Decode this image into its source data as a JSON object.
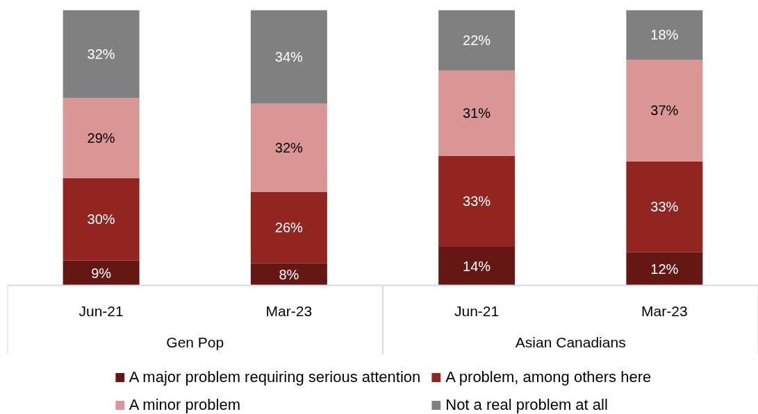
{
  "chart_data": {
    "type": "bar",
    "stacked": true,
    "categories": [
      "Jun-21",
      "Mar-23",
      "Jun-21",
      "Mar-23"
    ],
    "series": [
      {
        "name": "A major problem requiring serious attention",
        "color": "#651713",
        "values": [
          9,
          8,
          14,
          12
        ],
        "value_labels": [
          "9%",
          "8%",
          "14%",
          "12%"
        ]
      },
      {
        "name": "A problem, among others here",
        "color": "#922520",
        "values": [
          30,
          26,
          33,
          33
        ],
        "value_labels": [
          "30%",
          "26%",
          "33%",
          "33%"
        ]
      },
      {
        "name": "A minor problem",
        "color": "#da9694",
        "values": [
          29,
          32,
          31,
          37
        ],
        "value_labels": [
          "29%",
          "32%",
          "31%",
          "37%"
        ]
      },
      {
        "name": "Not a real problem at all",
        "color": "#808080",
        "values": [
          32,
          34,
          22,
          18
        ],
        "value_labels": [
          "32%",
          "34%",
          "22%",
          "18%"
        ]
      }
    ],
    "annotations": [
      "Gen Pop",
      "Asian Canadians"
    ],
    "legend": "bottom",
    "tick_labels": "x"
  }
}
